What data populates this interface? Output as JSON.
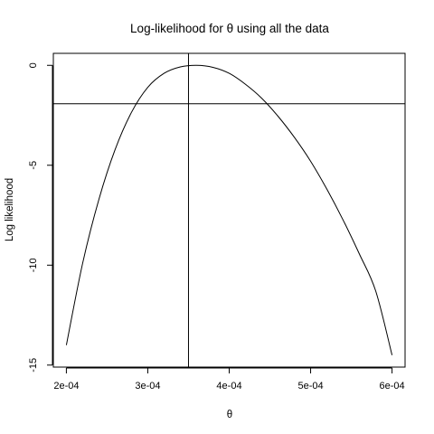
{
  "chart_data": {
    "type": "line",
    "title": "Log-likelihood for θ using all the data",
    "xlabel": "θ",
    "ylabel": "Log likelihood",
    "xlim": [
      0.000184,
      0.000616
    ],
    "ylim": [
      -15.1,
      0.6
    ],
    "x_ticks": [
      0.0002,
      0.0003,
      0.0004,
      0.0005,
      0.0006
    ],
    "x_tick_labels": [
      "2e-04",
      "3e-04",
      "4e-04",
      "5e-04",
      "6e-04"
    ],
    "y_ticks": [
      0,
      -5,
      -10,
      -15
    ],
    "y_tick_labels": [
      "0",
      "-5",
      "-10",
      "-15"
    ],
    "grid": false,
    "legend": "none",
    "series": [
      {
        "x": [
          0.0002,
          0.00022,
          0.00024,
          0.00026,
          0.00028,
          0.0003,
          0.00032,
          0.00034,
          0.00036,
          0.00038,
          0.0004,
          0.00042,
          0.00044,
          0.00046,
          0.00048,
          0.0005,
          0.00052,
          0.00054,
          0.00056,
          0.00058,
          0.0006
        ],
        "y": [
          -14.0,
          -9.9,
          -6.7,
          -4.2,
          -2.35,
          -1.1,
          -0.4,
          -0.08,
          0.0,
          -0.1,
          -0.4,
          -0.95,
          -1.65,
          -2.55,
          -3.6,
          -4.8,
          -6.2,
          -7.75,
          -9.45,
          -11.3,
          -14.5
        ]
      }
    ],
    "reference_lines": {
      "vertical_x": 0.00035,
      "horizontal_y": -1.92
    }
  }
}
